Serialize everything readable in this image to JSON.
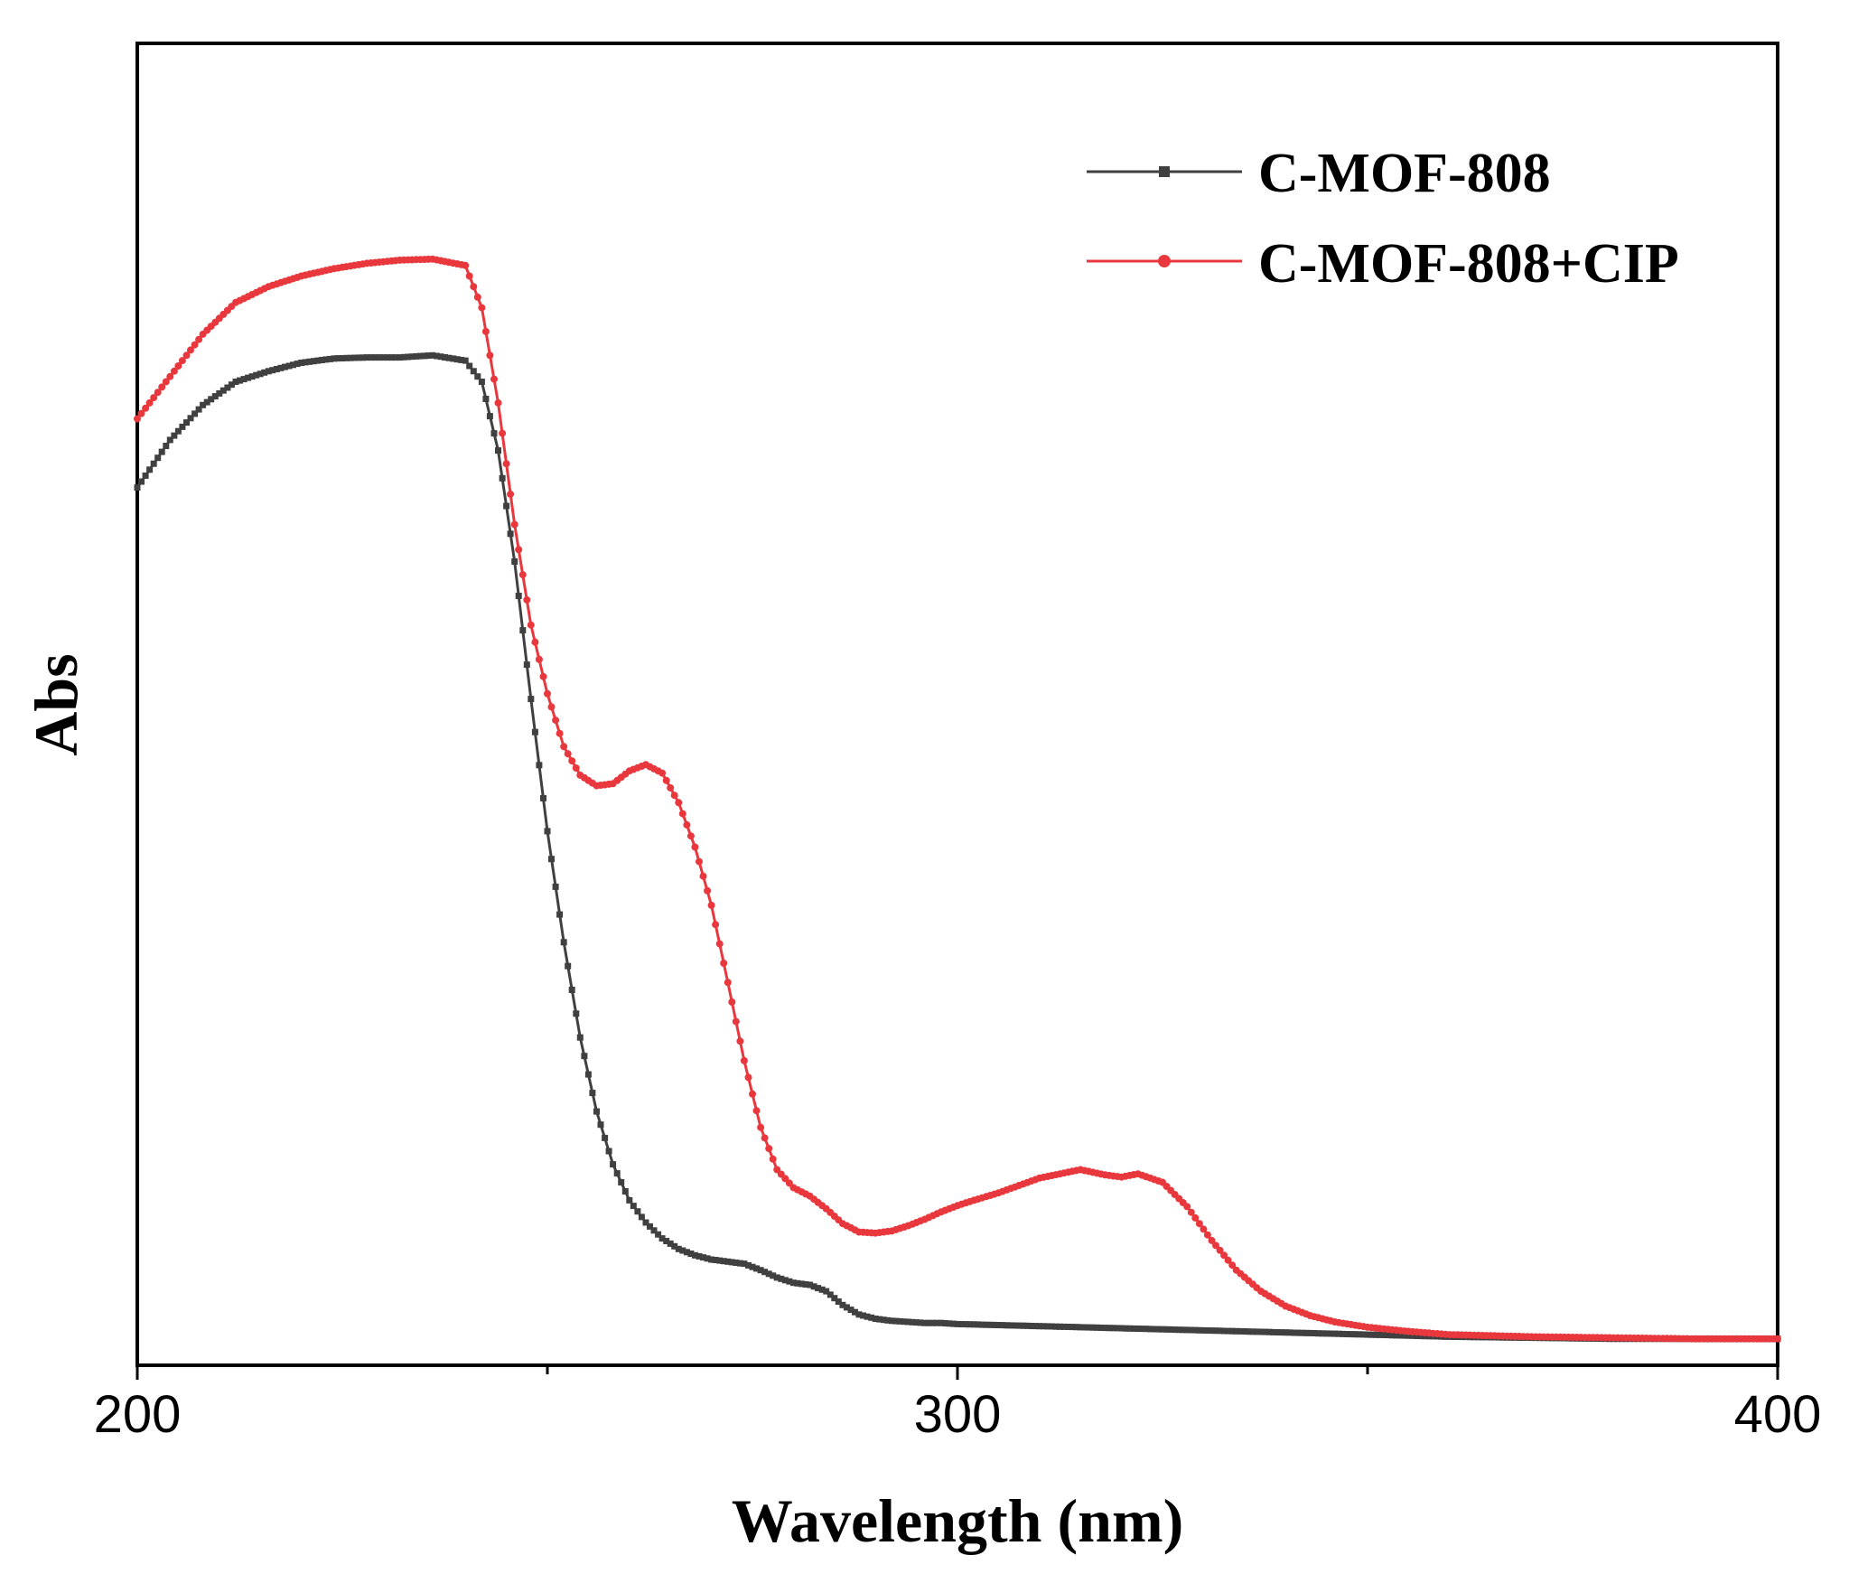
{
  "chart_data": {
    "type": "line",
    "title": "",
    "xlabel": "Wavelength (nm)",
    "ylabel": "Abs",
    "xlim": [
      200,
      400
    ],
    "ylim": [
      0,
      1.25
    ],
    "x_ticks_major": [
      200,
      300,
      400
    ],
    "x_tick_labels": [
      "200",
      "300",
      "400"
    ],
    "x_ticks_minor": [
      250,
      350
    ],
    "y_ticks": [],
    "grid": false,
    "legend_position": "top-right",
    "series": [
      {
        "name": "C-MOF-808",
        "color": "#404040",
        "marker": "square",
        "x": [
          200,
          204,
          208,
          212,
          216,
          220,
          224,
          228,
          232,
          236,
          240,
          242,
          244,
          246,
          248,
          250,
          252,
          254,
          256,
          258,
          260,
          262,
          264,
          266,
          268,
          270,
          272,
          274,
          276,
          278,
          280,
          282,
          284,
          286,
          288,
          290,
          292,
          294,
          296,
          298,
          300,
          305,
          310,
          320,
          330,
          340,
          350,
          360,
          370,
          380,
          390,
          400
        ],
        "y": [
          0.83,
          0.875,
          0.908,
          0.93,
          0.94,
          0.948,
          0.952,
          0.953,
          0.953,
          0.955,
          0.95,
          0.93,
          0.865,
          0.76,
          0.63,
          0.505,
          0.4,
          0.31,
          0.24,
          0.19,
          0.156,
          0.135,
          0.12,
          0.11,
          0.104,
          0.1,
          0.098,
          0.096,
          0.09,
          0.083,
          0.078,
          0.076,
          0.07,
          0.057,
          0.048,
          0.044,
          0.042,
          0.041,
          0.04,
          0.04,
          0.039,
          0.038,
          0.037,
          0.035,
          0.033,
          0.031,
          0.029,
          0.027,
          0.026,
          0.025,
          0.025,
          0.025
        ]
      },
      {
        "name": "C-MOF-808+CIP",
        "color": "#e8383d",
        "marker": "circle",
        "x": [
          200,
          204,
          208,
          212,
          216,
          220,
          224,
          228,
          232,
          236,
          240,
          242,
          244,
          246,
          248,
          250,
          252,
          254,
          256,
          258,
          260,
          262,
          264,
          266,
          268,
          270,
          272,
          274,
          276,
          278,
          280,
          282,
          284,
          286,
          288,
          290,
          292,
          294,
          296,
          298,
          300,
          302,
          305,
          310,
          315,
          318,
          320,
          322,
          325,
          328,
          331,
          334,
          337,
          340,
          343,
          346,
          350,
          355,
          360,
          370,
          380,
          390,
          400
        ],
        "y": [
          0.895,
          0.935,
          0.975,
          1.005,
          1.02,
          1.03,
          1.037,
          1.042,
          1.045,
          1.046,
          1.04,
          1.0,
          0.91,
          0.795,
          0.7,
          0.635,
          0.585,
          0.558,
          0.548,
          0.55,
          0.562,
          0.568,
          0.56,
          0.532,
          0.49,
          0.435,
          0.362,
          0.288,
          0.225,
          0.185,
          0.168,
          0.16,
          0.148,
          0.134,
          0.126,
          0.125,
          0.127,
          0.132,
          0.138,
          0.145,
          0.151,
          0.156,
          0.163,
          0.177,
          0.185,
          0.18,
          0.178,
          0.181,
          0.173,
          0.15,
          0.118,
          0.09,
          0.07,
          0.056,
          0.047,
          0.041,
          0.036,
          0.032,
          0.029,
          0.027,
          0.026,
          0.025,
          0.025
        ]
      }
    ]
  }
}
